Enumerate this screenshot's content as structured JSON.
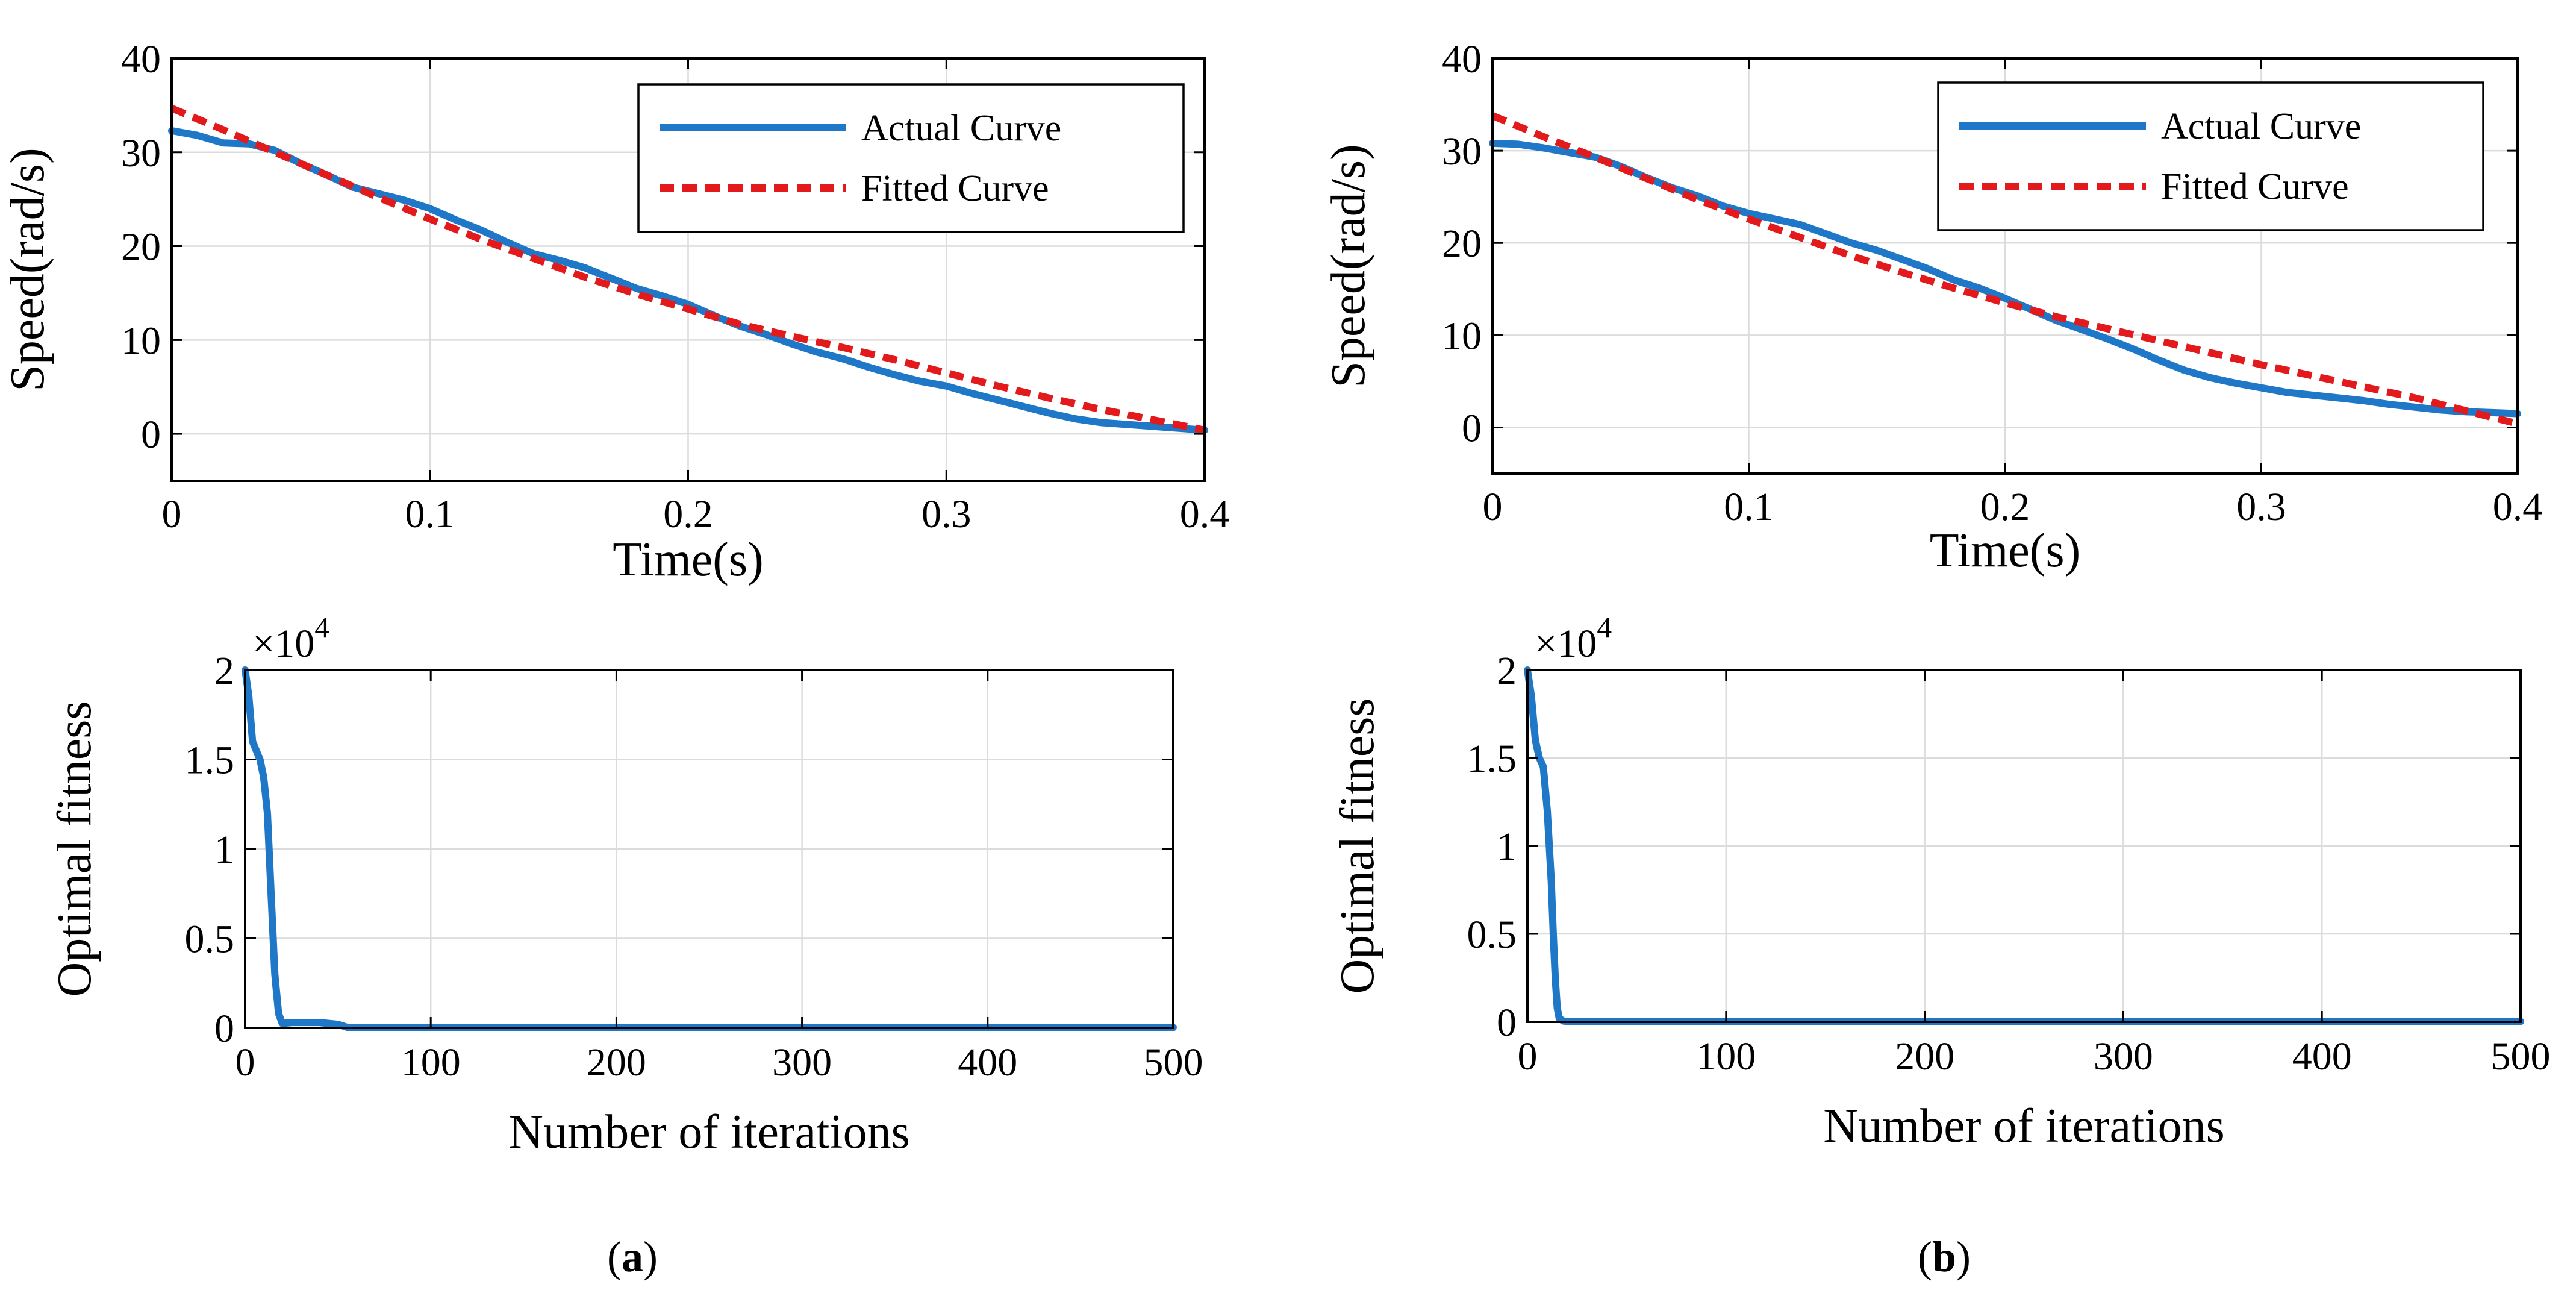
{
  "chart_data": [
    {
      "id": "a-speed",
      "type": "line",
      "xlabel": "Time(s)",
      "ylabel": "Speed(rad/s)",
      "xlim": [
        0,
        0.4
      ],
      "ylim": [
        -5,
        40
      ],
      "xticks": [
        0,
        0.1,
        0.2,
        0.3,
        0.4
      ],
      "xtick_labels": [
        "0",
        "0.1",
        "0.2",
        "0.3",
        "0.4"
      ],
      "yticks": [
        0,
        10,
        20,
        30,
        40
      ],
      "ytick_labels": [
        "0",
        "10",
        "20",
        "30",
        "40"
      ],
      "grid": true,
      "legend": "top-right",
      "series": [
        {
          "name": "Actual Curve",
          "color": "#1f77c8",
          "style": "solid",
          "x": [
            0,
            0.01,
            0.02,
            0.03,
            0.04,
            0.05,
            0.06,
            0.07,
            0.08,
            0.09,
            0.1,
            0.11,
            0.12,
            0.13,
            0.14,
            0.15,
            0.16,
            0.17,
            0.18,
            0.19,
            0.2,
            0.21,
            0.22,
            0.23,
            0.24,
            0.25,
            0.26,
            0.27,
            0.28,
            0.29,
            0.3,
            0.31,
            0.32,
            0.33,
            0.34,
            0.35,
            0.36,
            0.37,
            0.38,
            0.39,
            0.4
          ],
          "y": [
            32.3,
            31.8,
            31.0,
            30.9,
            30.2,
            28.8,
            27.6,
            26.3,
            25.6,
            24.9,
            24.0,
            22.8,
            21.7,
            20.4,
            19.2,
            18.5,
            17.7,
            16.6,
            15.5,
            14.7,
            13.8,
            12.6,
            11.5,
            10.6,
            9.6,
            8.7,
            8.0,
            7.1,
            6.3,
            5.6,
            5.1,
            4.3,
            3.6,
            2.9,
            2.2,
            1.6,
            1.2,
            1.0,
            0.8,
            0.6,
            0.4
          ]
        },
        {
          "name": "Fitted Curve",
          "color": "#e31a1c",
          "style": "dashed",
          "x": [
            0,
            0.02,
            0.04,
            0.06,
            0.08,
            0.1,
            0.12,
            0.14,
            0.16,
            0.18,
            0.2,
            0.22,
            0.24,
            0.26,
            0.28,
            0.3,
            0.32,
            0.34,
            0.36,
            0.38,
            0.4
          ],
          "y": [
            34.7,
            32.4,
            30.0,
            27.6,
            25.2,
            22.9,
            20.7,
            18.7,
            16.7,
            14.9,
            13.3,
            11.7,
            10.4,
            9.2,
            7.9,
            6.5,
            5.1,
            3.8,
            2.6,
            1.5,
            0.4
          ]
        }
      ]
    },
    {
      "id": "b-speed",
      "type": "line",
      "xlabel": "Time(s)",
      "ylabel": "Speed(rad/s)",
      "xlim": [
        0,
        0.4
      ],
      "ylim": [
        -5,
        40
      ],
      "xticks": [
        0,
        0.1,
        0.2,
        0.3,
        0.4
      ],
      "xtick_labels": [
        "0",
        "0.1",
        "0.2",
        "0.3",
        "0.4"
      ],
      "yticks": [
        0,
        10,
        20,
        30,
        40
      ],
      "ytick_labels": [
        "0",
        "10",
        "20",
        "30",
        "40"
      ],
      "grid": true,
      "legend": "top-right",
      "series": [
        {
          "name": "Actual Curve",
          "color": "#1f77c8",
          "style": "solid",
          "x": [
            0,
            0.01,
            0.02,
            0.03,
            0.04,
            0.05,
            0.06,
            0.07,
            0.08,
            0.09,
            0.1,
            0.11,
            0.12,
            0.13,
            0.14,
            0.15,
            0.16,
            0.17,
            0.18,
            0.19,
            0.2,
            0.21,
            0.22,
            0.23,
            0.24,
            0.25,
            0.26,
            0.27,
            0.28,
            0.29,
            0.3,
            0.31,
            0.32,
            0.33,
            0.34,
            0.35,
            0.36,
            0.37,
            0.38,
            0.39,
            0.4
          ],
          "y": [
            30.8,
            30.7,
            30.3,
            29.8,
            29.3,
            28.3,
            27.1,
            26.0,
            25.1,
            24.0,
            23.2,
            22.6,
            22.0,
            21.0,
            20.0,
            19.2,
            18.2,
            17.2,
            16.0,
            15.1,
            14.0,
            12.8,
            11.6,
            10.6,
            9.6,
            8.5,
            7.3,
            6.2,
            5.4,
            4.8,
            4.3,
            3.8,
            3.5,
            3.2,
            2.9,
            2.5,
            2.2,
            1.9,
            1.7,
            1.6,
            1.5
          ]
        },
        {
          "name": "Fitted Curve",
          "color": "#e31a1c",
          "style": "dashed",
          "x": [
            0,
            0.02,
            0.04,
            0.06,
            0.08,
            0.1,
            0.12,
            0.14,
            0.16,
            0.18,
            0.2,
            0.22,
            0.24,
            0.26,
            0.28,
            0.3,
            0.32,
            0.34,
            0.36,
            0.38,
            0.4
          ],
          "y": [
            33.8,
            31.5,
            29.3,
            27.0,
            24.7,
            22.6,
            20.6,
            18.6,
            16.8,
            15.1,
            13.5,
            12.0,
            10.7,
            9.4,
            8.1,
            6.8,
            5.6,
            4.4,
            3.2,
            1.8,
            0.4
          ]
        }
      ]
    },
    {
      "id": "a-fitness",
      "type": "line",
      "xlabel": "Number of iterations",
      "ylabel": "Optimal fitness",
      "exponent_base": "×10",
      "exponent_power": "4",
      "xlim": [
        0,
        500
      ],
      "ylim": [
        0,
        2
      ],
      "xticks": [
        0,
        100,
        200,
        300,
        400,
        500
      ],
      "xtick_labels": [
        "0",
        "100",
        "200",
        "300",
        "400",
        "500"
      ],
      "yticks": [
        0,
        0.5,
        1,
        1.5,
        2
      ],
      "ytick_labels": [
        "0",
        "0.5",
        "1",
        "1.5",
        "2"
      ],
      "grid": true,
      "series": [
        {
          "name": "Optimal fitness",
          "color": "#1f77c8",
          "style": "solid",
          "x": [
            0,
            2,
            4,
            6,
            8,
            10,
            12,
            14,
            16,
            18,
            20,
            25,
            30,
            40,
            50,
            55,
            60,
            100,
            200,
            300,
            400,
            500
          ],
          "y": [
            2.0,
            1.85,
            1.6,
            1.55,
            1.5,
            1.4,
            1.2,
            0.75,
            0.3,
            0.08,
            0.025,
            0.03,
            0.03,
            0.03,
            0.02,
            0.003,
            0.002,
            0.002,
            0.002,
            0.002,
            0.002,
            0.002
          ]
        }
      ]
    },
    {
      "id": "b-fitness",
      "type": "line",
      "xlabel": "Number of iterations",
      "ylabel": "Optimal fitness",
      "exponent_base": "×10",
      "exponent_power": "4",
      "xlim": [
        0,
        500
      ],
      "ylim": [
        0,
        2
      ],
      "xticks": [
        0,
        100,
        200,
        300,
        400,
        500
      ],
      "xtick_labels": [
        "0",
        "100",
        "200",
        "300",
        "400",
        "500"
      ],
      "yticks": [
        0,
        0.5,
        1,
        1.5,
        2
      ],
      "ytick_labels": [
        "0",
        "0.5",
        "1",
        "1.5",
        "2"
      ],
      "grid": true,
      "series": [
        {
          "name": "Optimal fitness",
          "color": "#1f77c8",
          "style": "solid",
          "x": [
            0,
            2,
            4,
            6,
            8,
            10,
            12,
            13,
            14,
            15,
            16,
            18,
            20,
            100,
            200,
            300,
            400,
            500
          ],
          "y": [
            2.0,
            1.85,
            1.6,
            1.5,
            1.45,
            1.2,
            0.8,
            0.5,
            0.25,
            0.08,
            0.02,
            0.005,
            0.002,
            0.002,
            0.002,
            0.002,
            0.002,
            0.002
          ]
        }
      ]
    }
  ],
  "captions": {
    "a": "a",
    "b": "b"
  }
}
